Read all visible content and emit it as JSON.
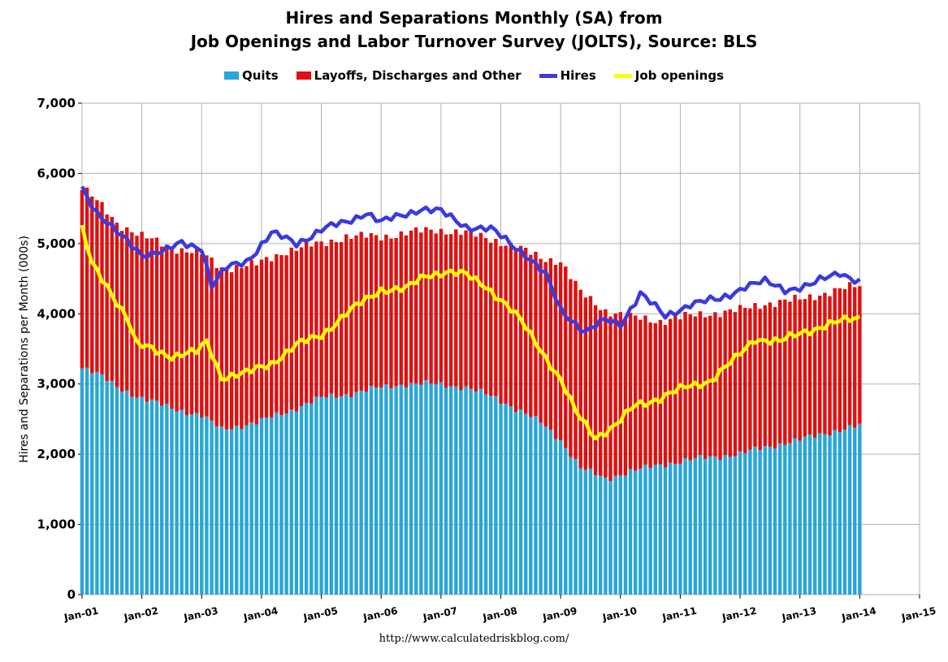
{
  "titles": {
    "line1": "Hires and Separations Monthly (SA) from",
    "line2": "Job Openings and Labor Turnover Survey (JOLTS), Source: BLS"
  },
  "legend": {
    "quits": "Quits",
    "layoffs": "Layoffs, Discharges and Other",
    "hires": "Hires",
    "openings": "Job openings"
  },
  "colors": {
    "quits": "#2aa5d8",
    "layoffs": "#e01010",
    "hires": "#3a3ae0",
    "openings": "#ffff00",
    "grid": "#b0b0b0"
  },
  "source_url": "http://www.calculatedriskblog.com/",
  "chart_data": {
    "type": "bar",
    "stacked": true,
    "title": "Hires and Separations Monthly (SA) from Job Openings and Labor Turnover Survey (JOLTS), Source: BLS",
    "xlabel": "",
    "ylabel": "Hires and Separations per Month (000s)",
    "ylim": [
      0,
      7000
    ],
    "yticks": [
      "0",
      "1,000",
      "2,000",
      "3,000",
      "4,000",
      "5,000",
      "6,000",
      "7,000"
    ],
    "xticks": [
      "Jan-01",
      "Jan-02",
      "Jan-03",
      "Jan-04",
      "Jan-05",
      "Jan-06",
      "Jan-07",
      "Jan-08",
      "Jan-09",
      "Jan-10",
      "Jan-11",
      "Jan-12",
      "Jan-13",
      "Jan-14",
      "Jan-15"
    ],
    "xrange": [
      "2001-01",
      "2015-01"
    ],
    "grid": true,
    "legend_position": "top",
    "start_month": "2001-01",
    "end_month": "2014-01",
    "series": [
      {
        "name": "Quits",
        "kind": "bar",
        "anchors": [
          [
            "2001-01",
            3250
          ],
          [
            "2001-04",
            3150
          ],
          [
            "2001-08",
            2950
          ],
          [
            "2002-01",
            2800
          ],
          [
            "2002-07",
            2650
          ],
          [
            "2003-01",
            2550
          ],
          [
            "2003-05",
            2350
          ],
          [
            "2003-12",
            2450
          ],
          [
            "2004-06",
            2600
          ],
          [
            "2005-01",
            2800
          ],
          [
            "2005-06",
            2850
          ],
          [
            "2006-01",
            2950
          ],
          [
            "2006-06",
            3000
          ],
          [
            "2006-12",
            3000
          ],
          [
            "2007-06",
            2950
          ],
          [
            "2007-12",
            2800
          ],
          [
            "2008-04",
            2650
          ],
          [
            "2008-09",
            2450
          ],
          [
            "2009-01",
            2200
          ],
          [
            "2009-05",
            1800
          ],
          [
            "2009-10",
            1650
          ],
          [
            "2010-03",
            1750
          ],
          [
            "2010-09",
            1850
          ],
          [
            "2011-06",
            1950
          ],
          [
            "2012-01",
            2000
          ],
          [
            "2012-06",
            2100
          ],
          [
            "2013-01",
            2200
          ],
          [
            "2013-06",
            2300
          ],
          [
            "2014-01",
            2400
          ]
        ]
      },
      {
        "name": "Layoffs, Discharges and Other",
        "kind": "bar",
        "anchors": [
          [
            "2001-01",
            5800
          ],
          [
            "2001-04",
            5600
          ],
          [
            "2001-08",
            5300
          ],
          [
            "2002-01",
            5100
          ],
          [
            "2002-07",
            4950
          ],
          [
            "2003-01",
            4850
          ],
          [
            "2003-05",
            4650
          ],
          [
            "2003-12",
            4700
          ],
          [
            "2004-06",
            4900
          ],
          [
            "2005-01",
            5000
          ],
          [
            "2005-06",
            5100
          ],
          [
            "2006-01",
            5100
          ],
          [
            "2006-06",
            5150
          ],
          [
            "2006-12",
            5200
          ],
          [
            "2007-06",
            5150
          ],
          [
            "2007-12",
            5050
          ],
          [
            "2008-04",
            4950
          ],
          [
            "2008-09",
            4800
          ],
          [
            "2009-01",
            4750
          ],
          [
            "2009-05",
            4300
          ],
          [
            "2009-10",
            4050
          ],
          [
            "2010-03",
            3950
          ],
          [
            "2010-09",
            3900
          ],
          [
            "2011-06",
            4000
          ],
          [
            "2012-01",
            4050
          ],
          [
            "2012-06",
            4150
          ],
          [
            "2013-01",
            4200
          ],
          [
            "2013-06",
            4300
          ],
          [
            "2014-01",
            4400
          ]
        ]
      },
      {
        "name": "Hires",
        "kind": "line",
        "anchors": [
          [
            "2001-01",
            5800
          ],
          [
            "2001-04",
            5450
          ],
          [
            "2001-08",
            5150
          ],
          [
            "2002-01",
            4850
          ],
          [
            "2002-06",
            4900
          ],
          [
            "2002-09",
            5000
          ],
          [
            "2003-01",
            4950
          ],
          [
            "2003-03",
            4400
          ],
          [
            "2003-06",
            4650
          ],
          [
            "2003-10",
            4750
          ],
          [
            "2004-03",
            5150
          ],
          [
            "2004-08",
            5000
          ],
          [
            "2005-01",
            5200
          ],
          [
            "2005-06",
            5300
          ],
          [
            "2005-10",
            5450
          ],
          [
            "2006-01",
            5300
          ],
          [
            "2006-05",
            5400
          ],
          [
            "2006-09",
            5500
          ],
          [
            "2007-01",
            5450
          ],
          [
            "2007-06",
            5250
          ],
          [
            "2007-11",
            5200
          ],
          [
            "2008-03",
            5000
          ],
          [
            "2008-06",
            4850
          ],
          [
            "2008-10",
            4550
          ],
          [
            "2009-01",
            4050
          ],
          [
            "2009-06",
            3750
          ],
          [
            "2009-10",
            3900
          ],
          [
            "2010-01",
            3850
          ],
          [
            "2010-05",
            4300
          ],
          [
            "2010-10",
            3950
          ],
          [
            "2011-03",
            4150
          ],
          [
            "2011-09",
            4200
          ],
          [
            "2012-02",
            4400
          ],
          [
            "2012-06",
            4450
          ],
          [
            "2012-10",
            4350
          ],
          [
            "2013-03",
            4400
          ],
          [
            "2013-09",
            4600
          ],
          [
            "2014-01",
            4450
          ]
        ]
      },
      {
        "name": "Job openings",
        "kind": "line",
        "anchors": [
          [
            "2001-01",
            5200
          ],
          [
            "2001-03",
            4700
          ],
          [
            "2001-06",
            4400
          ],
          [
            "2001-10",
            3950
          ],
          [
            "2001-12",
            3550
          ],
          [
            "2002-03",
            3500
          ],
          [
            "2002-07",
            3400
          ],
          [
            "2002-12",
            3450
          ],
          [
            "2003-02",
            3600
          ],
          [
            "2003-05",
            3100
          ],
          [
            "2003-10",
            3150
          ],
          [
            "2004-03",
            3300
          ],
          [
            "2004-08",
            3550
          ],
          [
            "2005-01",
            3700
          ],
          [
            "2005-06",
            4000
          ],
          [
            "2005-10",
            4200
          ],
          [
            "2006-01",
            4350
          ],
          [
            "2006-06",
            4350
          ],
          [
            "2006-10",
            4550
          ],
          [
            "2007-02",
            4600
          ],
          [
            "2007-06",
            4550
          ],
          [
            "2007-10",
            4400
          ],
          [
            "2008-01",
            4200
          ],
          [
            "2008-05",
            3900
          ],
          [
            "2008-09",
            3500
          ],
          [
            "2009-01",
            3050
          ],
          [
            "2009-04",
            2600
          ],
          [
            "2009-08",
            2250
          ],
          [
            "2009-12",
            2400
          ],
          [
            "2010-04",
            2700
          ],
          [
            "2010-09",
            2800
          ],
          [
            "2011-02",
            2950
          ],
          [
            "2011-07",
            3050
          ],
          [
            "2011-12",
            3350
          ],
          [
            "2012-04",
            3650
          ],
          [
            "2012-09",
            3600
          ],
          [
            "2013-02",
            3750
          ],
          [
            "2013-07",
            3850
          ],
          [
            "2014-01",
            3950
          ]
        ]
      }
    ]
  }
}
